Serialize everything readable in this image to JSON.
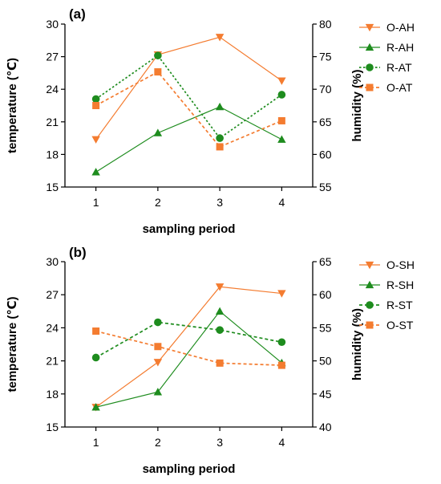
{
  "colors": {
    "orange": "#F47C30",
    "green": "#1E8C1E",
    "axis": "#000000"
  },
  "chart_data": [
    {
      "type": "line",
      "panel_label": "(a)",
      "x": [
        1,
        2,
        3,
        4
      ],
      "xlabel": "sampling period",
      "ylabel_left": "temperature (℃)",
      "ylabel_right": "humidity  (%)",
      "ylim_left": [
        15,
        30
      ],
      "ylim_right": [
        55,
        80
      ],
      "yticks_left": [
        15,
        18,
        21,
        24,
        27,
        30
      ],
      "yticks_right": [
        55,
        60,
        65,
        70,
        75,
        80
      ],
      "legend_position": "right",
      "grid": false,
      "series": [
        {
          "name": "O-AH",
          "axis": "right",
          "color": "#F47C30",
          "marker": "triangle-down",
          "line": "solid",
          "values": [
            62.3,
            75.3,
            78.0,
            71.3
          ]
        },
        {
          "name": "R-AH",
          "axis": "right",
          "color": "#1E8C1E",
          "marker": "triangle-up",
          "line": "solid",
          "values": [
            57.3,
            63.3,
            67.3,
            62.3
          ]
        },
        {
          "name": "R-AT",
          "axis": "left",
          "color": "#1E8C1E",
          "marker": "circle",
          "line": "dotted",
          "values": [
            23.1,
            27.1,
            19.5,
            23.5
          ]
        },
        {
          "name": "O-AT",
          "axis": "left",
          "color": "#F47C30",
          "marker": "square",
          "line": "dashed",
          "values": [
            22.5,
            25.6,
            18.7,
            21.1
          ]
        }
      ]
    },
    {
      "type": "line",
      "panel_label": "(b)",
      "x": [
        1,
        2,
        3,
        4
      ],
      "xlabel": "sampling period",
      "ylabel_left": "temperature (℃)",
      "ylabel_right": "humidity  (%)",
      "ylim_left": [
        15,
        30
      ],
      "ylim_right": [
        40,
        65
      ],
      "yticks_left": [
        15,
        18,
        21,
        24,
        27,
        30
      ],
      "yticks_right": [
        40,
        45,
        50,
        55,
        60,
        65
      ],
      "legend_position": "right",
      "grid": false,
      "series": [
        {
          "name": "O-SH",
          "axis": "right",
          "color": "#F47C30",
          "marker": "triangle-down",
          "line": "solid",
          "values": [
            43.0,
            49.8,
            61.2,
            60.2
          ]
        },
        {
          "name": "R-SH",
          "axis": "right",
          "color": "#1E8C1E",
          "marker": "triangle-up",
          "line": "solid",
          "values": [
            43.0,
            45.3,
            57.5,
            49.7
          ]
        },
        {
          "name": "R-ST",
          "axis": "left",
          "color": "#1E8C1E",
          "marker": "circle",
          "line": "dashed",
          "values": [
            21.3,
            24.5,
            23.8,
            22.7
          ]
        },
        {
          "name": "O-ST",
          "axis": "left",
          "color": "#F47C30",
          "marker": "square",
          "line": "dashed",
          "values": [
            23.7,
            22.3,
            20.8,
            20.6
          ]
        }
      ]
    }
  ]
}
